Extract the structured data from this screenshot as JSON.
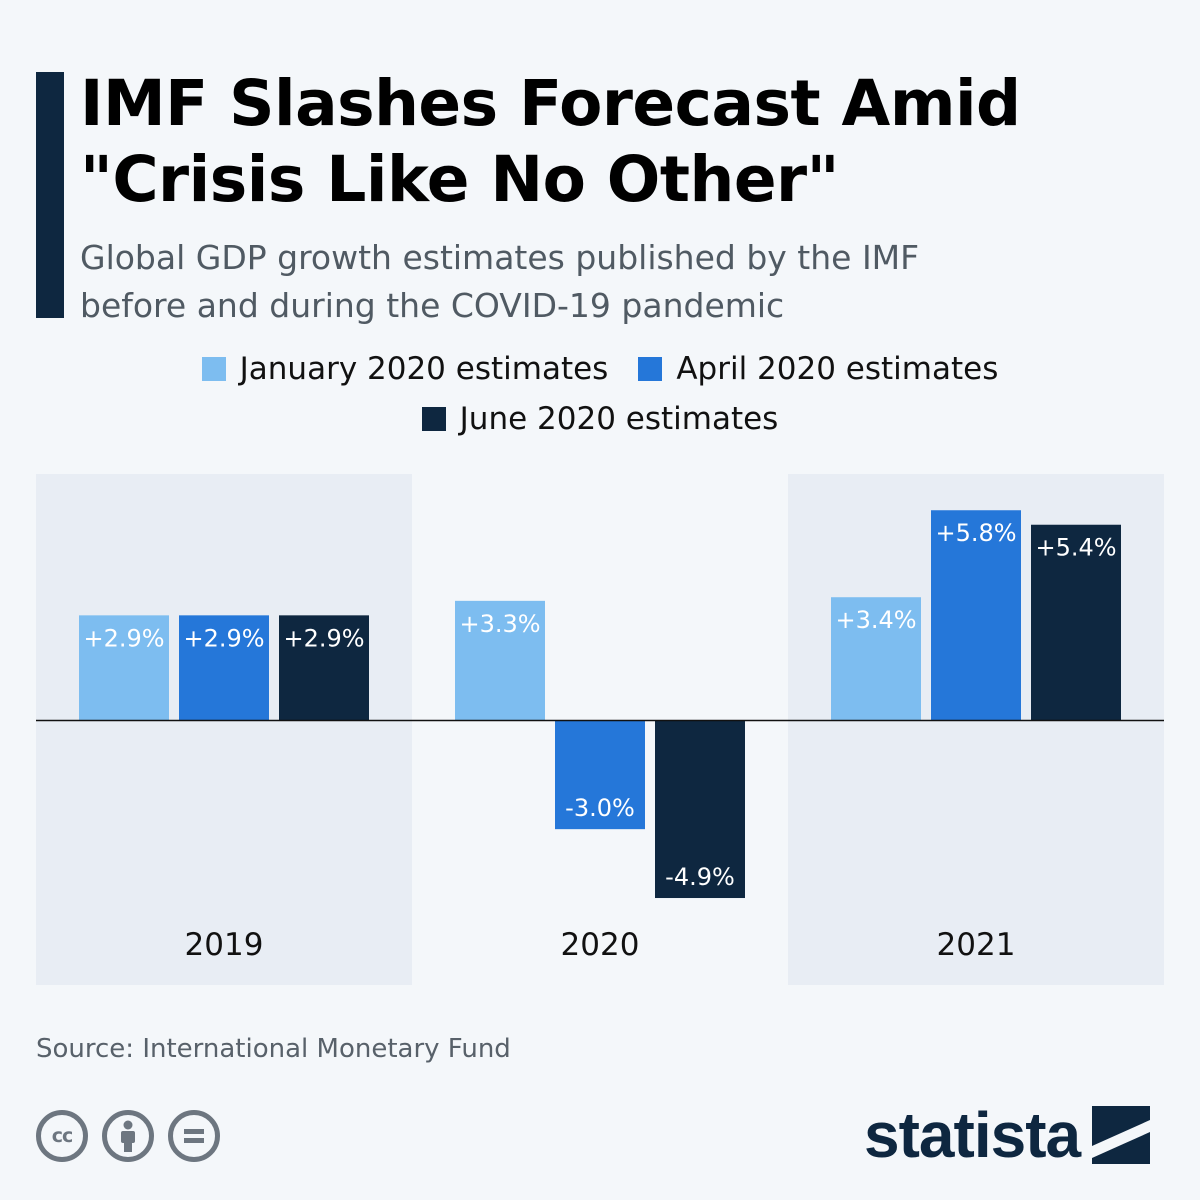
{
  "header": {
    "title": "IMF Slashes Forecast Amid\n\"Crisis Like No Other\"",
    "subtitle": "Global GDP growth estimates published by the IMF\nbefore and during the COVID-19 pandemic"
  },
  "legend": [
    {
      "label": "January 2020 estimates",
      "color": "#7dbdf0"
    },
    {
      "label": "April 2020 estimates",
      "color": "#2577d9"
    },
    {
      "label": "June 2020 estimates",
      "color": "#0e2740"
    }
  ],
  "chart_data": {
    "type": "bar",
    "categories": [
      "2019",
      "2020",
      "2021"
    ],
    "series": [
      {
        "name": "January 2020 estimates",
        "color": "#7dbdf0",
        "values": [
          2.9,
          3.3,
          3.4
        ],
        "labels": [
          "+2.9%",
          "+3.3%",
          "+3.4%"
        ]
      },
      {
        "name": "April 2020 estimates",
        "color": "#2577d9",
        "values": [
          2.9,
          -3.0,
          5.8
        ],
        "labels": [
          "+2.9%",
          "-3.0%",
          "+5.8%"
        ]
      },
      {
        "name": "June 2020 estimates",
        "color": "#0e2740",
        "values": [
          2.9,
          -4.9,
          5.4
        ],
        "labels": [
          "+2.9%",
          "-4.9%",
          "+5.4%"
        ]
      }
    ],
    "title": "IMF Slashes Forecast Amid \"Crisis Like No Other\"",
    "subtitle": "Global GDP growth estimates published by the IMF before and during the COVID-19 pandemic",
    "ylim": [
      -7.3,
      6.8
    ],
    "grid": false,
    "legend_position": "top-center",
    "zero_baseline": true
  },
  "footer": {
    "source": "Source: International Monetary Fund",
    "brand": "statista",
    "license_icons": [
      "cc-icon",
      "by-person-icon",
      "nd-equals-icon"
    ],
    "license_cc_text": "cc"
  }
}
